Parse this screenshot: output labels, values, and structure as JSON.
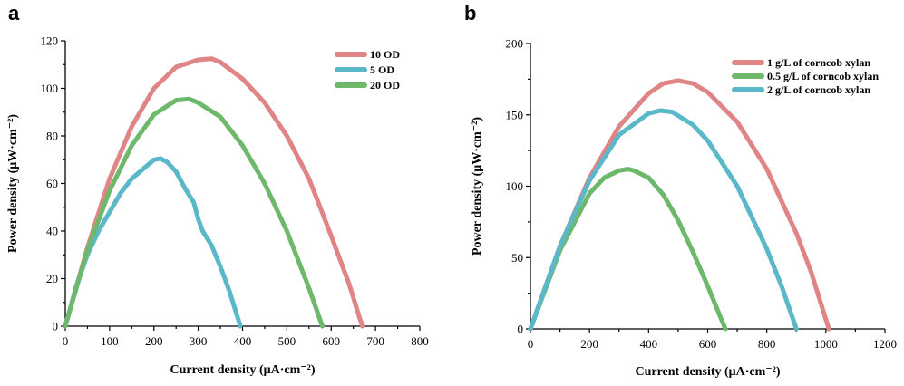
{
  "chart_data": [
    {
      "panel": "a",
      "type": "line",
      "title": "",
      "xlabel": "Current density (μA·cm⁻²)",
      "ylabel": "Power density (μW·cm⁻²)",
      "xlim": [
        0,
        800
      ],
      "ylim": [
        0,
        120
      ],
      "xticks": [
        0,
        100,
        200,
        300,
        400,
        500,
        600,
        700,
        800
      ],
      "yticks": [
        0,
        20,
        40,
        60,
        80,
        100,
        120
      ],
      "grid": false,
      "legend_position": "top-right",
      "series": [
        {
          "name": "10 OD",
          "color": "#e08585",
          "x": [
            0,
            50,
            100,
            150,
            200,
            250,
            300,
            330,
            350,
            400,
            450,
            500,
            550,
            600,
            640,
            670
          ],
          "y": [
            0,
            33,
            62,
            84,
            100,
            109,
            112,
            112.5,
            111,
            104,
            94,
            80,
            62,
            38,
            18,
            0
          ]
        },
        {
          "name": "5 OD",
          "color": "#5ab8c8",
          "x": [
            0,
            25,
            50,
            75,
            100,
            125,
            150,
            175,
            200,
            215,
            230,
            250,
            270,
            290,
            300,
            310,
            330,
            350,
            370,
            385,
            395
          ],
          "y": [
            0,
            17,
            30,
            40,
            48,
            56,
            62,
            66,
            70,
            70.5,
            69,
            65,
            58,
            52,
            45,
            40,
            34,
            25,
            15,
            6,
            0
          ]
        },
        {
          "name": "20 OD",
          "color": "#6db86a",
          "x": [
            0,
            50,
            100,
            150,
            200,
            250,
            280,
            300,
            350,
            400,
            450,
            500,
            550,
            580
          ],
          "y": [
            0,
            32,
            57,
            76,
            89,
            95,
            95.5,
            94,
            88,
            76,
            60,
            40,
            16,
            0
          ]
        }
      ]
    },
    {
      "panel": "b",
      "type": "line",
      "title": "",
      "xlabel": "Current density (μA·cm⁻²)",
      "ylabel": "Power density (μW·cm⁻²)",
      "xlim": [
        0,
        1200
      ],
      "ylim": [
        0,
        200
      ],
      "xticks": [
        0,
        200,
        400,
        600,
        800,
        1000,
        1200
      ],
      "yticks": [
        0,
        50,
        100,
        150,
        200
      ],
      "grid": false,
      "legend_position": "top-right",
      "series": [
        {
          "name": "1 g/L of corncob xylan",
          "color": "#e08585",
          "x": [
            0,
            100,
            200,
            300,
            400,
            450,
            500,
            550,
            600,
            700,
            800,
            900,
            950,
            1010
          ],
          "y": [
            0,
            58,
            106,
            142,
            165,
            172,
            174,
            172,
            166,
            145,
            112,
            67,
            40,
            0
          ]
        },
        {
          "name": "0.5 g/L of corncob xylan",
          "color": "#6db86a",
          "x": [
            0,
            100,
            200,
            250,
            300,
            330,
            350,
            400,
            450,
            500,
            550,
            600,
            640,
            660
          ],
          "y": [
            0,
            55,
            95,
            106,
            111,
            112,
            111,
            106,
            94,
            76,
            54,
            30,
            10,
            0
          ]
        },
        {
          "name": "2 g/L of corncob xylan",
          "color": "#5ab8c8",
          "x": [
            0,
            100,
            200,
            300,
            400,
            440,
            480,
            550,
            600,
            700,
            800,
            850,
            900
          ],
          "y": [
            0,
            58,
            104,
            136,
            151,
            153,
            152,
            143,
            132,
            100,
            56,
            30,
            0
          ]
        }
      ]
    }
  ]
}
